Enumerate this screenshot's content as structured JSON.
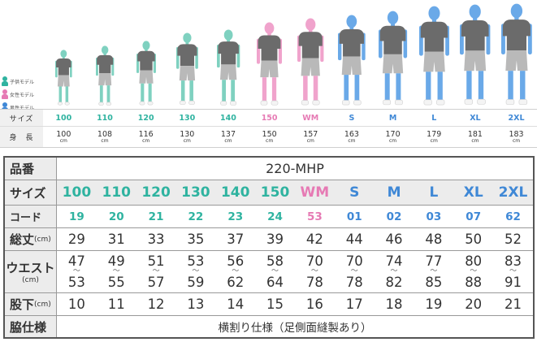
{
  "colors": {
    "kids": "#2fb3a0",
    "women": "#e67ab4",
    "men": "#3f88d6",
    "kids_figure": "#7fd1c0",
    "women_figure": "#f0a3cc",
    "men_figure": "#6aa9e8"
  },
  "legend": [
    {
      "label": "子供モデル",
      "group": "kids"
    },
    {
      "label": "女性モデル",
      "group": "women"
    },
    {
      "label": "男性モデル",
      "group": "men"
    }
  ],
  "models": [
    {
      "size": "100",
      "height": "100",
      "group": "kids"
    },
    {
      "size": "110",
      "height": "108",
      "group": "kids"
    },
    {
      "size": "120",
      "height": "116",
      "group": "kids"
    },
    {
      "size": "130",
      "height": "130",
      "group": "kids"
    },
    {
      "size": "140",
      "height": "137",
      "group": "kids"
    },
    {
      "size": "150",
      "height": "150",
      "group": "women"
    },
    {
      "size": "WM",
      "height": "157",
      "group": "women"
    },
    {
      "size": "S",
      "height": "163",
      "group": "men"
    },
    {
      "size": "M",
      "height": "170",
      "group": "men"
    },
    {
      "size": "L",
      "height": "179",
      "group": "men"
    },
    {
      "size": "XL",
      "height": "181",
      "group": "men"
    },
    {
      "size": "2XL",
      "height": "183",
      "group": "men"
    }
  ],
  "small_table": {
    "size_label": "サイズ",
    "height_label": "身　長",
    "unit": "cm"
  },
  "table": {
    "product_label": "品番",
    "product_code": "220-MHP",
    "size_label": "サイズ",
    "code_label": "コード",
    "length_label": "総丈",
    "waist_label": "ウエスト",
    "inseam_label": "股下",
    "side_label": "脇仕様",
    "unit": "(cm)",
    "tilde": "〜",
    "sizes": [
      "100",
      "110",
      "120",
      "130",
      "140",
      "150",
      "WM",
      "S",
      "M",
      "L",
      "XL",
      "2XL"
    ],
    "codes": [
      "19",
      "20",
      "21",
      "22",
      "23",
      "24",
      "53",
      "01",
      "02",
      "03",
      "07",
      "62"
    ],
    "groups": [
      "kids",
      "kids",
      "kids",
      "kids",
      "kids",
      "kids",
      "women",
      "men",
      "men",
      "men",
      "men",
      "men"
    ],
    "length": [
      "29",
      "31",
      "33",
      "35",
      "37",
      "39",
      "42",
      "44",
      "46",
      "48",
      "50",
      "52"
    ],
    "waist_min": [
      "47",
      "49",
      "51",
      "53",
      "56",
      "58",
      "70",
      "70",
      "74",
      "77",
      "80",
      "83"
    ],
    "waist_max": [
      "53",
      "55",
      "57",
      "59",
      "62",
      "64",
      "78",
      "78",
      "82",
      "85",
      "88",
      "91"
    ],
    "inseam": [
      "10",
      "11",
      "12",
      "13",
      "14",
      "15",
      "16",
      "17",
      "18",
      "19",
      "20",
      "21"
    ],
    "side_spec": "横割り仕様（足側面縫製あり）"
  }
}
